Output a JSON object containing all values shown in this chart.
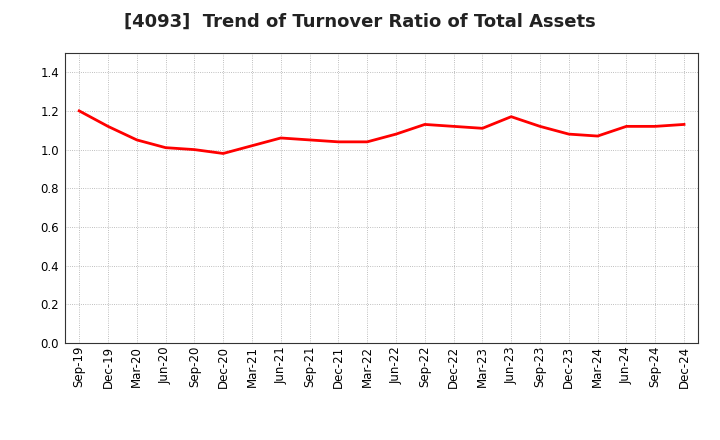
{
  "title": "[4093]  Trend of Turnover Ratio of Total Assets",
  "x_labels": [
    "Sep-19",
    "Dec-19",
    "Mar-20",
    "Jun-20",
    "Sep-20",
    "Dec-20",
    "Mar-21",
    "Jun-21",
    "Sep-21",
    "Dec-21",
    "Mar-22",
    "Jun-22",
    "Sep-22",
    "Dec-22",
    "Mar-23",
    "Jun-23",
    "Sep-23",
    "Dec-23",
    "Mar-24",
    "Jun-24",
    "Sep-24",
    "Dec-24"
  ],
  "y_values": [
    1.2,
    1.12,
    1.05,
    1.01,
    1.0,
    0.98,
    1.02,
    1.06,
    1.05,
    1.04,
    1.04,
    1.08,
    1.13,
    1.12,
    1.11,
    1.17,
    1.12,
    1.08,
    1.07,
    1.12,
    1.12,
    1.13
  ],
  "line_color": "#FF0000",
  "line_width": 2.0,
  "ylim": [
    0.0,
    1.5
  ],
  "yticks": [
    0.0,
    0.2,
    0.4,
    0.6,
    0.8,
    1.0,
    1.2,
    1.4
  ],
  "title_fontsize": 13,
  "tick_fontsize": 8.5,
  "bg_color": "#ffffff",
  "plot_bg_color": "#ffffff",
  "grid_color": "#aaaaaa",
  "spine_color": "#333333"
}
